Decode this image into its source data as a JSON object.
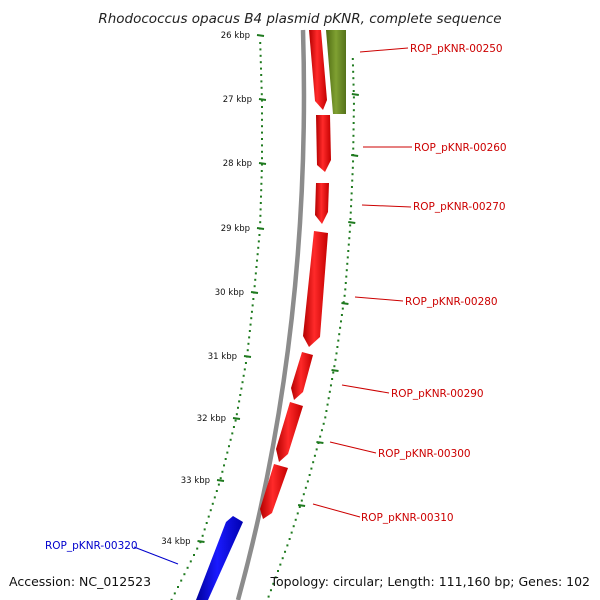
{
  "title": "Rhodococcus opacus B4 plasmid pKNR, complete sequence",
  "accession": "Accession: NC_012523",
  "topology": "Topology: circular; Length: 111,160 bp; Genes: 102",
  "colors": {
    "backbone": "#8c8c8c",
    "forward_gene": "#ff0000",
    "reverse_gene": "#0000ff",
    "feature": "#6b8e23",
    "ticks": "#1f7a1f",
    "forward_label": "#cc0000",
    "reverse_label": "#0000cc"
  },
  "ticks": [
    "26 kbp",
    "27 kbp",
    "28 kbp",
    "29 kbp",
    "30 kbp",
    "31 kbp",
    "32 kbp",
    "33 kbp",
    "34 kbp"
  ],
  "genes": [
    {
      "id": "ROP_pKNR-00250",
      "strand": "forward"
    },
    {
      "id": "ROP_pKNR-00260",
      "strand": "forward"
    },
    {
      "id": "ROP_pKNR-00270",
      "strand": "forward"
    },
    {
      "id": "ROP_pKNR-00280",
      "strand": "forward"
    },
    {
      "id": "ROP_pKNR-00290",
      "strand": "forward"
    },
    {
      "id": "ROP_pKNR-00300",
      "strand": "forward"
    },
    {
      "id": "ROP_pKNR-00310",
      "strand": "forward"
    },
    {
      "id": "ROP_pKNR-00320",
      "strand": "reverse"
    }
  ]
}
